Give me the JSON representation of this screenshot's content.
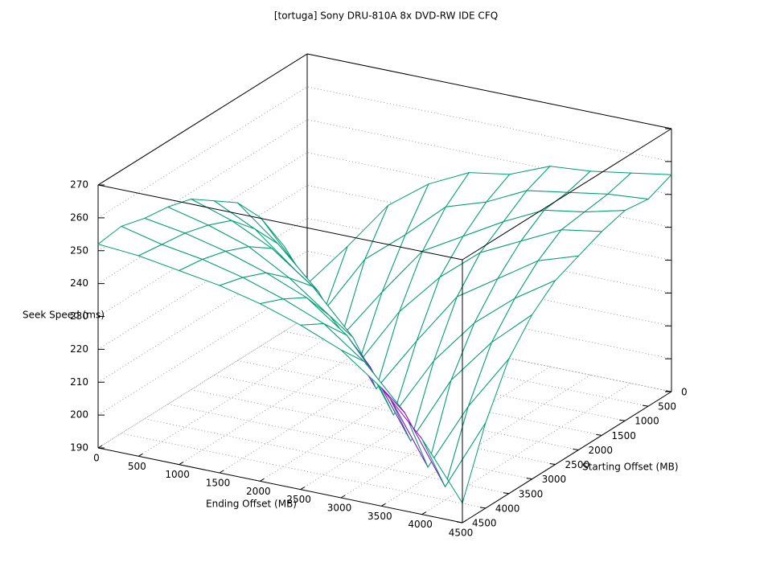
{
  "chart_data": {
    "type": "surface",
    "title": "[tortuga] Sony DRU-810A 8x DVD-RW IDE CFQ",
    "x_label": "Ending Offset (MB)",
    "y_label": "Starting Offset (MB)",
    "z_label": "Seek Speed (ms)",
    "x": [
      0,
      500,
      1000,
      1500,
      2000,
      2500,
      3000,
      3500,
      4000,
      4500
    ],
    "y": [
      0,
      500,
      1000,
      1500,
      2000,
      2500,
      3000,
      3500,
      4000,
      4500
    ],
    "z": [
      [
        200,
        214,
        229,
        238,
        244,
        246,
        251,
        252,
        254,
        256
      ],
      [
        216,
        199,
        217,
        227,
        238,
        242,
        248,
        250,
        252,
        253
      ],
      [
        229,
        215,
        198,
        214,
        229,
        236,
        243,
        249,
        251,
        254
      ],
      [
        238,
        228,
        216,
        197,
        215,
        228,
        238,
        244,
        250,
        252
      ],
      [
        243,
        237,
        227,
        214,
        196,
        213,
        229,
        237,
        245,
        249
      ],
      [
        248,
        244,
        238,
        229,
        216,
        195,
        214,
        228,
        238,
        246
      ],
      [
        250,
        247,
        243,
        236,
        227,
        214,
        194,
        215,
        229,
        240
      ],
      [
        251,
        249,
        246,
        242,
        237,
        228,
        213,
        193,
        214,
        231
      ],
      [
        253,
        250,
        248,
        245,
        241,
        236,
        227,
        214,
        194,
        216
      ],
      [
        252,
        251,
        249,
        247,
        244,
        240,
        235,
        226,
        213,
        196
      ]
    ],
    "xlim": [
      0,
      4500
    ],
    "ylim": [
      0,
      4500
    ],
    "zlim": [
      190,
      270
    ],
    "xticks": [
      0,
      500,
      1000,
      1500,
      2000,
      2500,
      3000,
      3500,
      4000,
      4500
    ],
    "yticks": [
      0,
      500,
      1000,
      1500,
      2000,
      2500,
      3000,
      3500,
      4000,
      4500
    ],
    "zticks": [
      190,
      200,
      210,
      220,
      230,
      240,
      250,
      260,
      270
    ],
    "grid": true,
    "top_color": "#9400d3",
    "bottom_color": "#009e73"
  }
}
